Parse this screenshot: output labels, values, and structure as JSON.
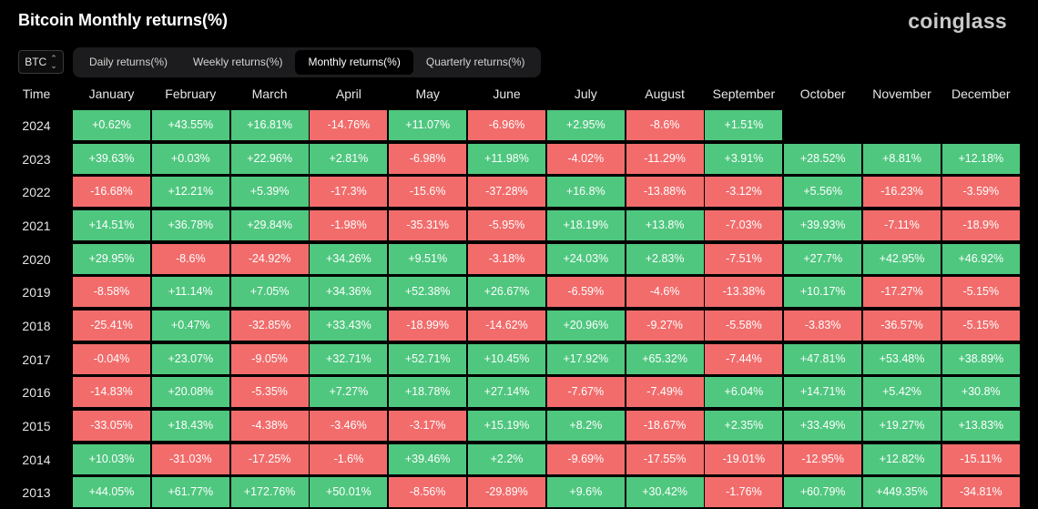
{
  "header": {
    "title": "Bitcoin Monthly returns(%)",
    "brand": "coinglass"
  },
  "controls": {
    "coin": "BTC",
    "tabs": [
      {
        "label": "Daily returns(%)",
        "active": false
      },
      {
        "label": "Weekly returns(%)",
        "active": false
      },
      {
        "label": "Monthly returns(%)",
        "active": true
      },
      {
        "label": "Quarterly returns(%)",
        "active": false
      }
    ]
  },
  "colors": {
    "positive": "#4fc77f",
    "negative": "#f26c6c",
    "background": "#000000"
  },
  "chart_data": {
    "type": "heatmap",
    "title": "Bitcoin Monthly returns(%)",
    "corner_label": "Time",
    "columns": [
      "January",
      "February",
      "March",
      "April",
      "May",
      "June",
      "July",
      "August",
      "September",
      "October",
      "November",
      "December"
    ],
    "rows": [
      {
        "year": "2024",
        "values": [
          "+0.62%",
          "+43.55%",
          "+16.81%",
          "-14.76%",
          "+11.07%",
          "-6.96%",
          "+2.95%",
          "-8.6%",
          "+1.51%",
          null,
          null,
          null
        ]
      },
      {
        "year": "2023",
        "values": [
          "+39.63%",
          "+0.03%",
          "+22.96%",
          "+2.81%",
          "-6.98%",
          "+11.98%",
          "-4.02%",
          "-11.29%",
          "+3.91%",
          "+28.52%",
          "+8.81%",
          "+12.18%"
        ]
      },
      {
        "year": "2022",
        "values": [
          "-16.68%",
          "+12.21%",
          "+5.39%",
          "-17.3%",
          "-15.6%",
          "-37.28%",
          "+16.8%",
          "-13.88%",
          "-3.12%",
          "+5.56%",
          "-16.23%",
          "-3.59%"
        ]
      },
      {
        "year": "2021",
        "values": [
          "+14.51%",
          "+36.78%",
          "+29.84%",
          "-1.98%",
          "-35.31%",
          "-5.95%",
          "+18.19%",
          "+13.8%",
          "-7.03%",
          "+39.93%",
          "-7.11%",
          "-18.9%"
        ]
      },
      {
        "year": "2020",
        "values": [
          "+29.95%",
          "-8.6%",
          "-24.92%",
          "+34.26%",
          "+9.51%",
          "-3.18%",
          "+24.03%",
          "+2.83%",
          "-7.51%",
          "+27.7%",
          "+42.95%",
          "+46.92%"
        ]
      },
      {
        "year": "2019",
        "values": [
          "-8.58%",
          "+11.14%",
          "+7.05%",
          "+34.36%",
          "+52.38%",
          "+26.67%",
          "-6.59%",
          "-4.6%",
          "-13.38%",
          "+10.17%",
          "-17.27%",
          "-5.15%"
        ]
      },
      {
        "year": "2018",
        "values": [
          "-25.41%",
          "+0.47%",
          "-32.85%",
          "+33.43%",
          "-18.99%",
          "-14.62%",
          "+20.96%",
          "-9.27%",
          "-5.58%",
          "-3.83%",
          "-36.57%",
          "-5.15%"
        ]
      },
      {
        "year": "2017",
        "values": [
          "-0.04%",
          "+23.07%",
          "-9.05%",
          "+32.71%",
          "+52.71%",
          "+10.45%",
          "+17.92%",
          "+65.32%",
          "-7.44%",
          "+47.81%",
          "+53.48%",
          "+38.89%"
        ]
      },
      {
        "year": "2016",
        "values": [
          "-14.83%",
          "+20.08%",
          "-5.35%",
          "+7.27%",
          "+18.78%",
          "+27.14%",
          "-7.67%",
          "-7.49%",
          "+6.04%",
          "+14.71%",
          "+5.42%",
          "+30.8%"
        ]
      },
      {
        "year": "2015",
        "values": [
          "-33.05%",
          "+18.43%",
          "-4.38%",
          "-3.46%",
          "-3.17%",
          "+15.19%",
          "+8.2%",
          "-18.67%",
          "+2.35%",
          "+33.49%",
          "+19.27%",
          "+13.83%"
        ]
      },
      {
        "year": "2014",
        "values": [
          "+10.03%",
          "-31.03%",
          "-17.25%",
          "-1.6%",
          "+39.46%",
          "+2.2%",
          "-9.69%",
          "-17.55%",
          "-19.01%",
          "-12.95%",
          "+12.82%",
          "-15.11%"
        ]
      },
      {
        "year": "2013",
        "values": [
          "+44.05%",
          "+61.77%",
          "+172.76%",
          "+50.01%",
          "-8.56%",
          "-29.89%",
          "+9.6%",
          "+30.42%",
          "-1.76%",
          "+60.79%",
          "+449.35%",
          "-34.81%"
        ]
      }
    ]
  }
}
